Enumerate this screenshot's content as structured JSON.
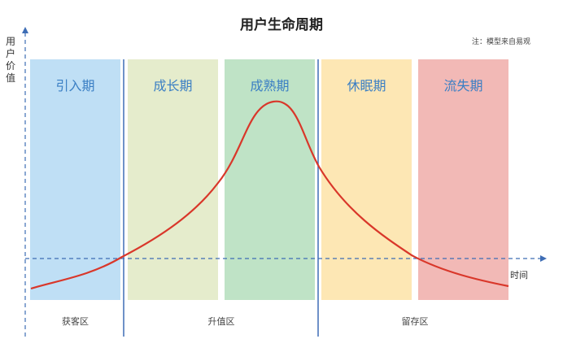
{
  "title": "用户生命周期",
  "note": "注：模型来自易观",
  "axes": {
    "y_label": "用户价值",
    "x_label": "时间"
  },
  "stages": [
    {
      "label": "引入期",
      "fill": "#bfdff5",
      "text_color": "#3b7fc4"
    },
    {
      "label": "成长期",
      "fill": "#e5eccc",
      "text_color": "#3b7fc4"
    },
    {
      "label": "成熟期",
      "fill": "#bfe3c6",
      "text_color": "#3b7fc4"
    },
    {
      "label": "休眠期",
      "fill": "#fde7b4",
      "text_color": "#3b7fc4"
    },
    {
      "label": "流失期",
      "fill": "#f2b9b6",
      "text_color": "#3b7fc4"
    }
  ],
  "zones": [
    {
      "label": "获客区"
    },
    {
      "label": "升值区"
    },
    {
      "label": "留存区"
    }
  ],
  "colors": {
    "curve": "#d9372a",
    "axis": "#3e6db5"
  }
}
